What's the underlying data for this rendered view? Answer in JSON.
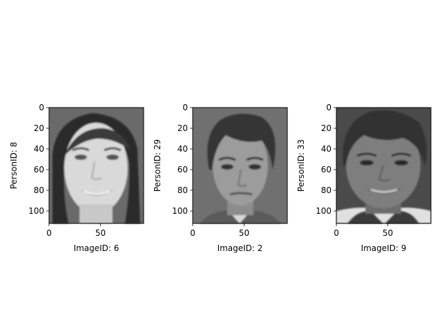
{
  "figure": {
    "panels": [
      {
        "xlabel": "ImageID: 6",
        "ylabel": "PersonID: 8",
        "xticks": [
          "0",
          "50"
        ],
        "yticks": [
          "0",
          "20",
          "40",
          "60",
          "80",
          "100"
        ],
        "face": {
          "skin": "#d9d9d9",
          "hair": "#2c2c2c",
          "bg": "#6a6a6a",
          "smile": true,
          "hair_style": "long"
        }
      },
      {
        "xlabel": "ImageID: 2",
        "ylabel": "PersonID: 29",
        "xticks": [
          "0",
          "50"
        ],
        "yticks": [
          "0",
          "20",
          "40",
          "60",
          "80",
          "100"
        ],
        "face": {
          "skin": "#9c9c9c",
          "hair": "#363636",
          "bg": "#707070",
          "smile": false,
          "hair_style": "short"
        }
      },
      {
        "xlabel": "ImageID: 9",
        "ylabel": "PersonID: 33",
        "xticks": [
          "0",
          "50"
        ],
        "yticks": [
          "0",
          "20",
          "40",
          "60",
          "80",
          "100"
        ],
        "face": {
          "skin": "#7e7e7e",
          "hair": "#303030",
          "bg": "#4a4a4a",
          "smile": true,
          "hair_style": "short"
        }
      }
    ]
  }
}
